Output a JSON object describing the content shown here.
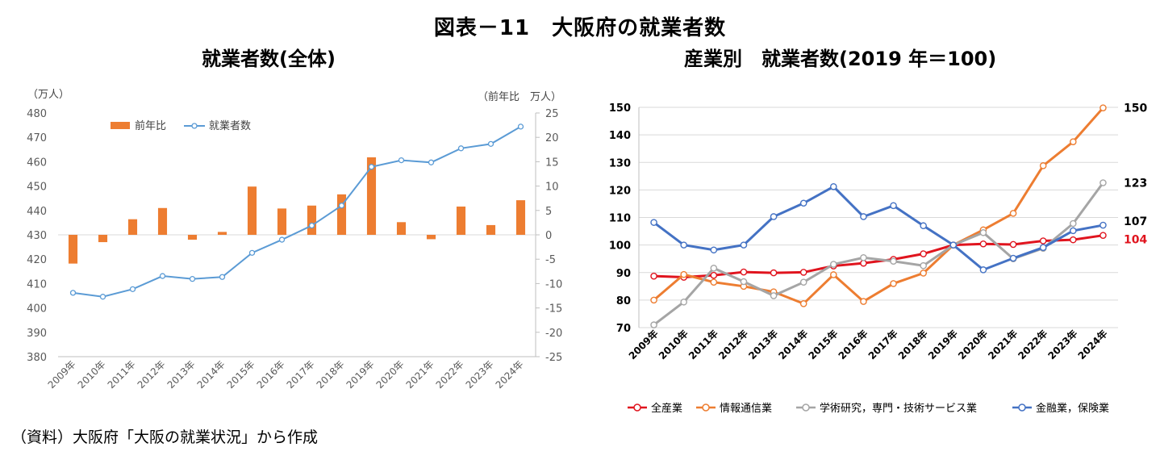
{
  "title": "図表－11　大阪府の就業者数",
  "footnote": "（資料）大阪府「大阪の就業状況」から作成",
  "chart_data": [
    {
      "type": "bar+line",
      "title": "就業者数(全体)",
      "left_axis_label": "（万人）",
      "right_axis_label": "（前年比　万人）",
      "categories": [
        "2009年",
        "2010年",
        "2011年",
        "2012年",
        "2013年",
        "2014年",
        "2015年",
        "2016年",
        "2017年",
        "2018年",
        "2019年",
        "2020年",
        "2021年",
        "2022年",
        "2023年",
        "2024年"
      ],
      "y_left_ticks": [
        480,
        470,
        460,
        450,
        440,
        430,
        420,
        410,
        400,
        390,
        380
      ],
      "y_right_ticks": [
        25,
        20,
        15,
        10,
        5,
        0,
        -5,
        -10,
        -15,
        -20,
        -25
      ],
      "ylim_left": [
        380,
        480
      ],
      "ylim_right": [
        -25,
        25
      ],
      "series": [
        {
          "name": "前年比",
          "kind": "bar",
          "axis": "right",
          "color": "#ed7d31",
          "values": [
            -5.9,
            -1.5,
            3.2,
            5.5,
            -1.0,
            0.6,
            9.9,
            5.4,
            6.0,
            8.3,
            15.9,
            2.6,
            -0.9,
            5.8,
            2.0,
            7.1
          ]
        },
        {
          "name": "就業者数",
          "kind": "line",
          "axis": "left",
          "color": "#5b9bd5",
          "values": [
            406.2,
            404.6,
            407.7,
            413.1,
            411.9,
            412.7,
            422.6,
            428.0,
            433.8,
            442.0,
            457.9,
            460.6,
            459.7,
            465.5,
            467.3,
            474.4
          ]
        }
      ],
      "legend_position": "top-left",
      "grid": false
    },
    {
      "type": "line",
      "title": "産業別　就業者数(2019 年＝100)",
      "categories": [
        "2009年",
        "2010年",
        "2011年",
        "2012年",
        "2013年",
        "2014年",
        "2015年",
        "2016年",
        "2017年",
        "2018年",
        "2019年",
        "2020年",
        "2021年",
        "2022年",
        "2023年",
        "2024年"
      ],
      "y_ticks": [
        150,
        140,
        130,
        120,
        110,
        100,
        90,
        80,
        70
      ],
      "ylim": [
        70,
        150
      ],
      "series": [
        {
          "name": "全産業",
          "color": "#e0141e",
          "values": [
            88.7,
            88.3,
            89.0,
            90.2,
            89.9,
            90.1,
            92.4,
            93.4,
            94.8,
            96.8,
            100,
            100.4,
            100.2,
            101.5,
            101.9,
            103.5
          ]
        },
        {
          "name": "情報通信業",
          "color": "#ed7d31",
          "values": [
            80.0,
            89.3,
            86.5,
            85.0,
            83.0,
            78.7,
            89.2,
            79.5,
            86.0,
            89.8,
            100,
            105.5,
            111.5,
            128.8,
            137.5,
            149.8
          ]
        },
        {
          "name": "学術研究，専門・技術サービス業",
          "color": "#a5a5a5",
          "values": [
            71.0,
            79.3,
            91.6,
            86.7,
            81.6,
            86.5,
            93.0,
            95.4,
            94.1,
            92.5,
            100,
            104.5,
            95.0,
            98.8,
            107.8,
            122.6
          ]
        },
        {
          "name": "金融業，保険業",
          "color": "#4472c4",
          "values": [
            108.2,
            100.0,
            98.2,
            100.0,
            110.3,
            115.2,
            121.2,
            110.3,
            114.3,
            107.0,
            100,
            91.0,
            95.2,
            99.1,
            105.2,
            107.2
          ]
        }
      ],
      "end_labels": [
        {
          "series": "情報通信業",
          "text": "150"
        },
        {
          "series": "学術研究，専門・技術サービス業",
          "text": "123"
        },
        {
          "series": "金融業，保険業",
          "text": "107"
        },
        {
          "series": "全産業",
          "text": "104"
        }
      ],
      "legend_position": "bottom",
      "grid": true
    }
  ]
}
